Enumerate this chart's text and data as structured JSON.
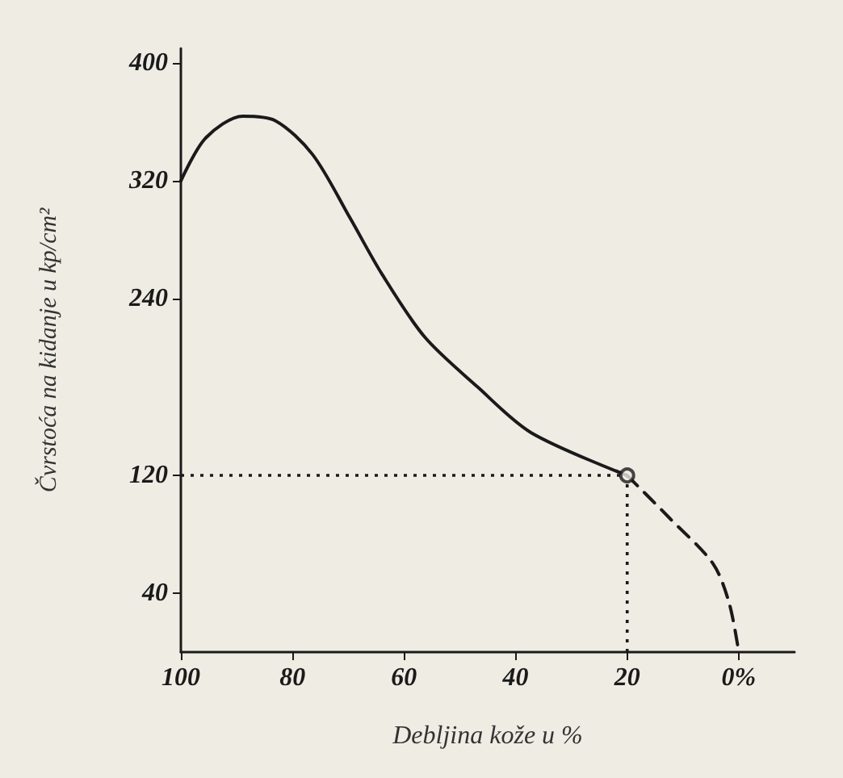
{
  "chart_data": {
    "type": "line",
    "xlabel": "Debljina kože u %",
    "ylabel": "Čvrstoća na kidanje u kp/cm²",
    "xlim": [
      100,
      -10
    ],
    "xticks": [
      100,
      80,
      60,
      40,
      20,
      {
        "value": 0,
        "label": "0%"
      }
    ],
    "ylim": [
      0,
      410
    ],
    "yticks": [
      40,
      120,
      240,
      320,
      400
    ],
    "grid": false,
    "series": [
      {
        "color": "#1a1a1a",
        "line_style": "solid",
        "marker": "none",
        "x": [
          100,
          95.6,
          88.9,
          83.1,
          76.4,
          69.7,
          64,
          56.3,
          46.8,
          37.2,
          20
        ],
        "values": [
          320,
          349,
          364,
          361,
          338,
          295,
          257,
          214,
          180,
          149,
          120
        ]
      },
      {
        "color": "#1a1a1a",
        "line_style": "dashed",
        "marker": "none",
        "x": [
          20,
          12.4,
          4.6,
          1.7,
          0
        ],
        "values": [
          120,
          91,
          60,
          33,
          0
        ]
      },
      {
        "type": "scatter",
        "color": "#1a1a1a",
        "marker": "circle",
        "x": [
          20
        ],
        "values": [
          120
        ]
      }
    ],
    "ref_lines": [
      {
        "axis": "y",
        "value": 120,
        "color": "#1a1a1a",
        "line_style": "dotted"
      },
      {
        "axis": "x",
        "value": 20,
        "color": "#1a1a1a",
        "line_style": "dotted"
      }
    ]
  }
}
